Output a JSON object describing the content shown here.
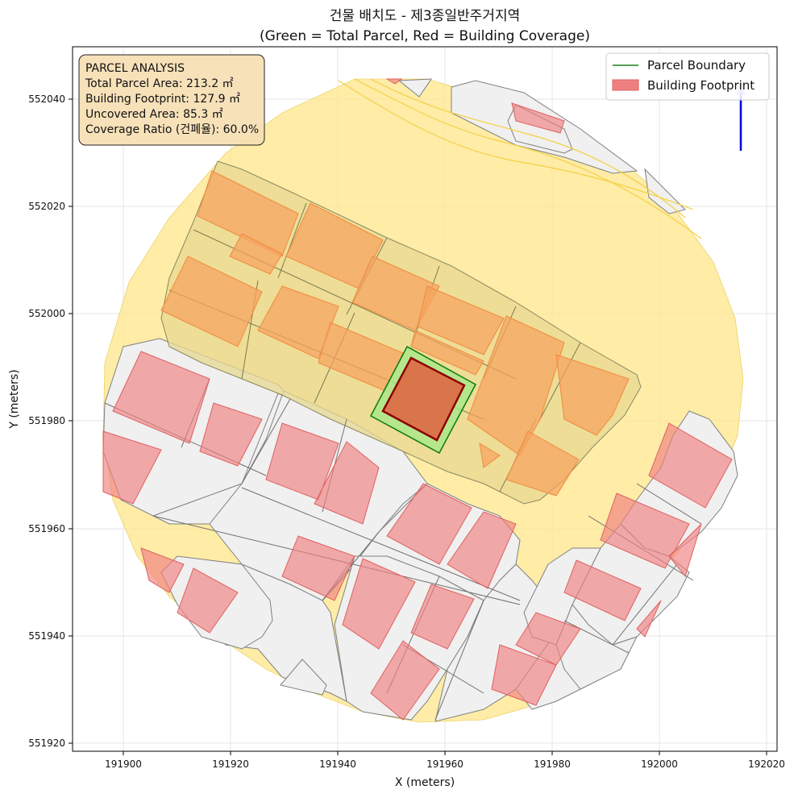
{
  "title_line1": "건물 배치도 - 제3종일반주거지역",
  "title_line2": "(Green = Total Parcel, Red = Building Coverage)",
  "xlabel": "X (meters)",
  "ylabel": "Y (meters)",
  "xticks": [
    "191900",
    "191920",
    "191940",
    "191960",
    "191980",
    "192000",
    "192020"
  ],
  "yticks": [
    "552040",
    "552020",
    "552000",
    "551980",
    "551960",
    "551940",
    "551920"
  ],
  "info": {
    "heading": "PARCEL ANALYSIS",
    "total": "Total Parcel Area: 213.2 ㎡",
    "footprint": "Building Footprint: 127.9 ㎡",
    "uncovered": "Uncovered Area: 85.3 ㎡",
    "ratio": "Coverage Ratio (건폐율): 60.0%"
  },
  "legend": {
    "parcel": "Parcel Boundary",
    "building": "Building Footprint"
  },
  "colors": {
    "road_zone": "#fde68a",
    "parcel_fill": "#f0f0f0",
    "building_red": "#f08080",
    "building_orange": "#f5a460",
    "target_parcel": "#a6e88a",
    "target_building": "#e06040",
    "target_outline_green": "#1a7f1a",
    "target_outline_red": "#8b0000",
    "info_box": "#f5deb3",
    "north_arrow": "#0000dd"
  },
  "chart_data": {
    "type": "map",
    "x_range": [
      191891,
      192022
    ],
    "y_range": [
      551918,
      552049
    ],
    "grid": true,
    "legend_position": "top-right",
    "info_box_position": "top-left",
    "target_parcel": {
      "boundary": [
        [
          191946,
          551981
        ],
        [
          191953,
          551994
        ],
        [
          191966,
          551988
        ],
        [
          191958,
          551973
        ]
      ],
      "building": [
        [
          191948,
          551982
        ],
        [
          191953,
          551992
        ],
        [
          191964,
          551987
        ],
        [
          191958,
          551976
        ]
      ]
    }
  }
}
